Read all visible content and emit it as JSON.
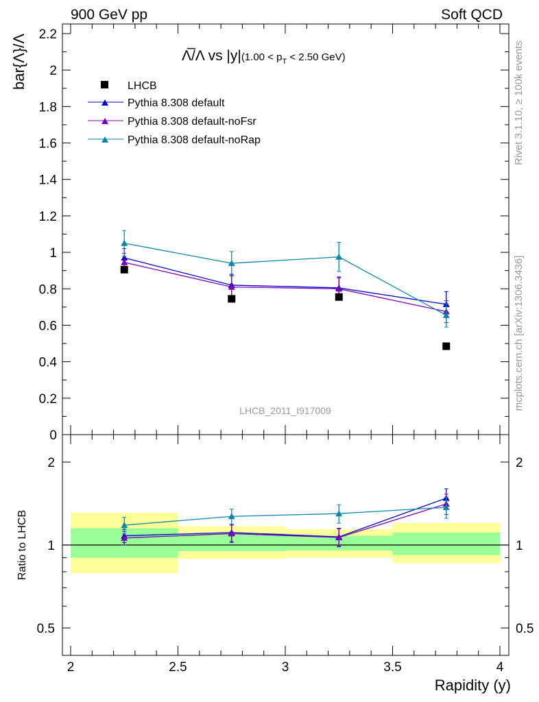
{
  "header": {
    "left": "900 GeV pp",
    "right": "Soft QCD"
  },
  "side_labels": {
    "rivet": "Rivet 3.1.10, ≥ 100k events",
    "mcplots": "mcplots.cern.ch [arXiv:1306.3436]"
  },
  "watermark": "LHCB_2011_I917009",
  "chart_data": [
    {
      "type": "line",
      "title": "Λ̅/Λ vs |y| (1.00 < p_T < 2.50 GeV)",
      "title_parts": {
        "main": "Λ̅/Λ vs |y|",
        "sub_pre": "(1.00 < p",
        "sub_idx": "T",
        "sub_post": " < 2.50 GeV)"
      },
      "xlabel": "",
      "ylabel": "bar{Λ}/Λ",
      "xlim": [
        2,
        4
      ],
      "ylim": [
        0,
        2.25
      ],
      "yticks": [
        "0",
        "0.2",
        "0.4",
        "0.6",
        "0.8",
        "1",
        "1.2",
        "1.4",
        "1.6",
        "1.8",
        "2",
        "2.2"
      ],
      "legend_position": "top-left",
      "data_series": {
        "name": "LHCB",
        "color": "#000000",
        "x": [
          2.25,
          2.75,
          3.25,
          3.75
        ],
        "y": [
          0.905,
          0.745,
          0.755,
          0.485
        ]
      },
      "series": [
        {
          "name": "Pythia 8.308 default",
          "color": "#0000cc",
          "x": [
            2.25,
            2.75,
            3.25,
            3.75
          ],
          "y": [
            0.97,
            0.82,
            0.805,
            0.715
          ],
          "err": [
            0.05,
            0.06,
            0.06,
            0.07
          ]
        },
        {
          "name": "Pythia 8.308 default-noFsr",
          "color": "#7a00b3",
          "x": [
            2.25,
            2.75,
            3.25,
            3.75
          ],
          "y": [
            0.945,
            0.81,
            0.8,
            0.675
          ],
          "err": [
            0.05,
            0.06,
            0.06,
            0.06
          ]
        },
        {
          "name": "Pythia 8.308 default-noRap",
          "color": "#0a86a8",
          "x": [
            2.25,
            2.75,
            3.25,
            3.75
          ],
          "y": [
            1.05,
            0.94,
            0.975,
            0.655
          ],
          "err": [
            0.07,
            0.065,
            0.08,
            0.065
          ]
        }
      ]
    },
    {
      "type": "line",
      "title": "",
      "xlabel": "Rapidity (y)",
      "ylabel": "Ratio to LHCB",
      "xlim": [
        2,
        4
      ],
      "ylim": [
        0.4,
        2.3
      ],
      "y_scale": "log",
      "xticks": [
        "2",
        "2.5",
        "3",
        "3.5",
        "4"
      ],
      "yticks": [
        "0.5",
        "1",
        "2"
      ],
      "bands": [
        {
          "x0": 2.0,
          "x1": 2.5,
          "stat": [
            0.9,
            1.15
          ],
          "total": [
            0.79,
            1.31
          ]
        },
        {
          "x0": 2.5,
          "x1": 3.0,
          "stat": [
            0.95,
            1.1
          ],
          "total": [
            0.89,
            1.17
          ]
        },
        {
          "x0": 3.0,
          "x1": 3.5,
          "stat": [
            0.955,
            1.08
          ],
          "total": [
            0.9,
            1.14
          ]
        },
        {
          "x0": 3.5,
          "x1": 4.0,
          "stat": [
            0.92,
            1.11
          ],
          "total": [
            0.86,
            1.2
          ]
        }
      ],
      "series": [
        {
          "name": "Pythia 8.308 default",
          "color": "#0000cc",
          "x": [
            2.25,
            2.75,
            3.25,
            3.75
          ],
          "y": [
            1.08,
            1.11,
            1.07,
            1.48
          ],
          "err": [
            0.06,
            0.08,
            0.08,
            0.12
          ]
        },
        {
          "name": "Pythia 8.308 default-noFsr",
          "color": "#7a00b3",
          "x": [
            2.25,
            2.75,
            3.25,
            3.75
          ],
          "y": [
            1.06,
            1.1,
            1.065,
            1.41
          ],
          "err": [
            0.06,
            0.08,
            0.08,
            0.12
          ]
        },
        {
          "name": "Pythia 8.308 default-noRap",
          "color": "#0a86a8",
          "x": [
            2.25,
            2.75,
            3.25,
            3.75
          ],
          "y": [
            1.18,
            1.27,
            1.3,
            1.37
          ],
          "err": [
            0.08,
            0.08,
            0.1,
            0.12
          ]
        }
      ]
    }
  ]
}
